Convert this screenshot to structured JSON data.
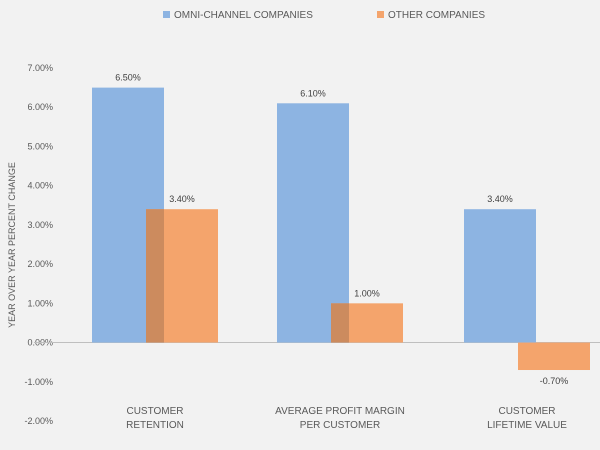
{
  "chart_data": {
    "type": "bar",
    "title": "",
    "xlabel": "",
    "ylabel": "YEAR OVER YEAR PERCENT CHANGE",
    "categories": [
      [
        "CUSTOMER",
        "RETENTION"
      ],
      [
        "AVERAGE PROFIT MARGIN",
        "PER CUSTOMER"
      ],
      [
        "CUSTOMER",
        "LIFETIME VALUE"
      ]
    ],
    "series": [
      {
        "name": "OMNI-CHANNEL COMPANIES",
        "color": "#8db4e2",
        "values": [
          6.5,
          6.1,
          3.4
        ],
        "labels": [
          "6.50%",
          "6.10%",
          "3.40%"
        ]
      },
      {
        "name": "OTHER COMPANIES",
        "color": "#f4a46c",
        "values": [
          3.4,
          1.0,
          -0.7
        ],
        "labels": [
          "3.40%",
          "1.00%",
          "-0.70%"
        ]
      }
    ],
    "overlap_color": "#cc8b5e",
    "ylim": [
      -2,
      7
    ],
    "yticks": [
      7,
      6,
      5,
      4,
      3,
      2,
      1,
      0,
      -1,
      -2
    ],
    "ytick_labels": [
      "7.00%",
      "6.00%",
      "5.00%",
      "4.00%",
      "3.00%",
      "2.00%",
      "1.00%",
      "0.00%",
      "-1.00%",
      "-2.00%"
    ],
    "legend_position": "top-center",
    "grid": false,
    "zero_line_color": "#bfbfbf"
  }
}
